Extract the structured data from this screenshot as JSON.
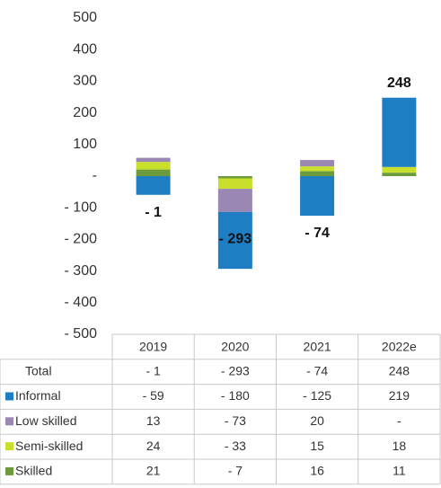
{
  "chart_data": {
    "type": "stacked_bar",
    "categories": [
      "2019",
      "2020",
      "2021",
      "2022e"
    ],
    "ylim": [
      -500,
      500
    ],
    "yticks": [
      {
        "value": 500,
        "label": "500"
      },
      {
        "value": 400,
        "label": "400"
      },
      {
        "value": 300,
        "label": "300"
      },
      {
        "value": 200,
        "label": "200"
      },
      {
        "value": 100,
        "label": "100"
      },
      {
        "value": 0,
        "label": "-"
      },
      {
        "value": -100,
        "label": "- 100"
      },
      {
        "value": -200,
        "label": "- 200"
      },
      {
        "value": -300,
        "label": "- 300"
      },
      {
        "value": -400,
        "label": "- 400"
      },
      {
        "value": -500,
        "label": "- 500"
      }
    ],
    "totals": {
      "name": "Total",
      "values": [
        -1,
        -293,
        -74,
        248
      ],
      "value_labels": [
        "- 1",
        "- 293",
        "- 74",
        "248"
      ]
    },
    "series": [
      {
        "name": "Informal",
        "color": "#1f7dc4",
        "values": [
          -59,
          -180,
          -125,
          219
        ],
        "value_labels": [
          "- 59",
          "- 180",
          "- 125",
          "219"
        ]
      },
      {
        "name": "Low skilled",
        "color": "#9b87b3",
        "values": [
          13,
          -73,
          20,
          null
        ],
        "value_labels": [
          "13",
          "- 73",
          "20",
          "-"
        ]
      },
      {
        "name": "Semi-skilled",
        "color": "#c8e02c",
        "values": [
          24,
          -33,
          15,
          18
        ],
        "value_labels": [
          "24",
          "- 33",
          "15",
          "18"
        ]
      },
      {
        "name": "Skilled",
        "color": "#6b9b3c",
        "values": [
          21,
          -7,
          16,
          11
        ],
        "value_labels": [
          "21",
          "- 7",
          "16",
          "11"
        ]
      }
    ]
  }
}
